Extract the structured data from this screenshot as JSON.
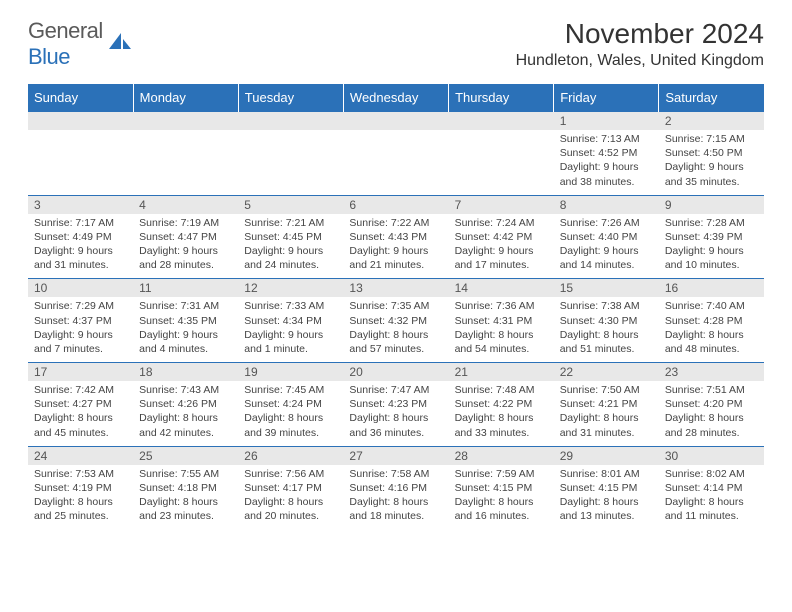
{
  "logo": {
    "text_gray": "General",
    "text_blue": "Blue"
  },
  "header": {
    "month_title": "November 2024",
    "location": "Hundleton, Wales, United Kingdom"
  },
  "colors": {
    "header_bg": "#2b71b8",
    "header_text": "#ffffff",
    "daynum_bg": "#e8e8e8",
    "border": "#2b71b8"
  },
  "days_of_week": [
    "Sunday",
    "Monday",
    "Tuesday",
    "Wednesday",
    "Thursday",
    "Friday",
    "Saturday"
  ],
  "weeks": [
    [
      null,
      null,
      null,
      null,
      null,
      {
        "n": "1",
        "sr": "7:13 AM",
        "ss": "4:52 PM",
        "dl": "9 hours and 38 minutes."
      },
      {
        "n": "2",
        "sr": "7:15 AM",
        "ss": "4:50 PM",
        "dl": "9 hours and 35 minutes."
      }
    ],
    [
      {
        "n": "3",
        "sr": "7:17 AM",
        "ss": "4:49 PM",
        "dl": "9 hours and 31 minutes."
      },
      {
        "n": "4",
        "sr": "7:19 AM",
        "ss": "4:47 PM",
        "dl": "9 hours and 28 minutes."
      },
      {
        "n": "5",
        "sr": "7:21 AM",
        "ss": "4:45 PM",
        "dl": "9 hours and 24 minutes."
      },
      {
        "n": "6",
        "sr": "7:22 AM",
        "ss": "4:43 PM",
        "dl": "9 hours and 21 minutes."
      },
      {
        "n": "7",
        "sr": "7:24 AM",
        "ss": "4:42 PM",
        "dl": "9 hours and 17 minutes."
      },
      {
        "n": "8",
        "sr": "7:26 AM",
        "ss": "4:40 PM",
        "dl": "9 hours and 14 minutes."
      },
      {
        "n": "9",
        "sr": "7:28 AM",
        "ss": "4:39 PM",
        "dl": "9 hours and 10 minutes."
      }
    ],
    [
      {
        "n": "10",
        "sr": "7:29 AM",
        "ss": "4:37 PM",
        "dl": "9 hours and 7 minutes."
      },
      {
        "n": "11",
        "sr": "7:31 AM",
        "ss": "4:35 PM",
        "dl": "9 hours and 4 minutes."
      },
      {
        "n": "12",
        "sr": "7:33 AM",
        "ss": "4:34 PM",
        "dl": "9 hours and 1 minute."
      },
      {
        "n": "13",
        "sr": "7:35 AM",
        "ss": "4:32 PM",
        "dl": "8 hours and 57 minutes."
      },
      {
        "n": "14",
        "sr": "7:36 AM",
        "ss": "4:31 PM",
        "dl": "8 hours and 54 minutes."
      },
      {
        "n": "15",
        "sr": "7:38 AM",
        "ss": "4:30 PM",
        "dl": "8 hours and 51 minutes."
      },
      {
        "n": "16",
        "sr": "7:40 AM",
        "ss": "4:28 PM",
        "dl": "8 hours and 48 minutes."
      }
    ],
    [
      {
        "n": "17",
        "sr": "7:42 AM",
        "ss": "4:27 PM",
        "dl": "8 hours and 45 minutes."
      },
      {
        "n": "18",
        "sr": "7:43 AM",
        "ss": "4:26 PM",
        "dl": "8 hours and 42 minutes."
      },
      {
        "n": "19",
        "sr": "7:45 AM",
        "ss": "4:24 PM",
        "dl": "8 hours and 39 minutes."
      },
      {
        "n": "20",
        "sr": "7:47 AM",
        "ss": "4:23 PM",
        "dl": "8 hours and 36 minutes."
      },
      {
        "n": "21",
        "sr": "7:48 AM",
        "ss": "4:22 PM",
        "dl": "8 hours and 33 minutes."
      },
      {
        "n": "22",
        "sr": "7:50 AM",
        "ss": "4:21 PM",
        "dl": "8 hours and 31 minutes."
      },
      {
        "n": "23",
        "sr": "7:51 AM",
        "ss": "4:20 PM",
        "dl": "8 hours and 28 minutes."
      }
    ],
    [
      {
        "n": "24",
        "sr": "7:53 AM",
        "ss": "4:19 PM",
        "dl": "8 hours and 25 minutes."
      },
      {
        "n": "25",
        "sr": "7:55 AM",
        "ss": "4:18 PM",
        "dl": "8 hours and 23 minutes."
      },
      {
        "n": "26",
        "sr": "7:56 AM",
        "ss": "4:17 PM",
        "dl": "8 hours and 20 minutes."
      },
      {
        "n": "27",
        "sr": "7:58 AM",
        "ss": "4:16 PM",
        "dl": "8 hours and 18 minutes."
      },
      {
        "n": "28",
        "sr": "7:59 AM",
        "ss": "4:15 PM",
        "dl": "8 hours and 16 minutes."
      },
      {
        "n": "29",
        "sr": "8:01 AM",
        "ss": "4:15 PM",
        "dl": "8 hours and 13 minutes."
      },
      {
        "n": "30",
        "sr": "8:02 AM",
        "ss": "4:14 PM",
        "dl": "8 hours and 11 minutes."
      }
    ]
  ],
  "labels": {
    "sunrise": "Sunrise: ",
    "sunset": "Sunset: ",
    "daylight": "Daylight: "
  }
}
